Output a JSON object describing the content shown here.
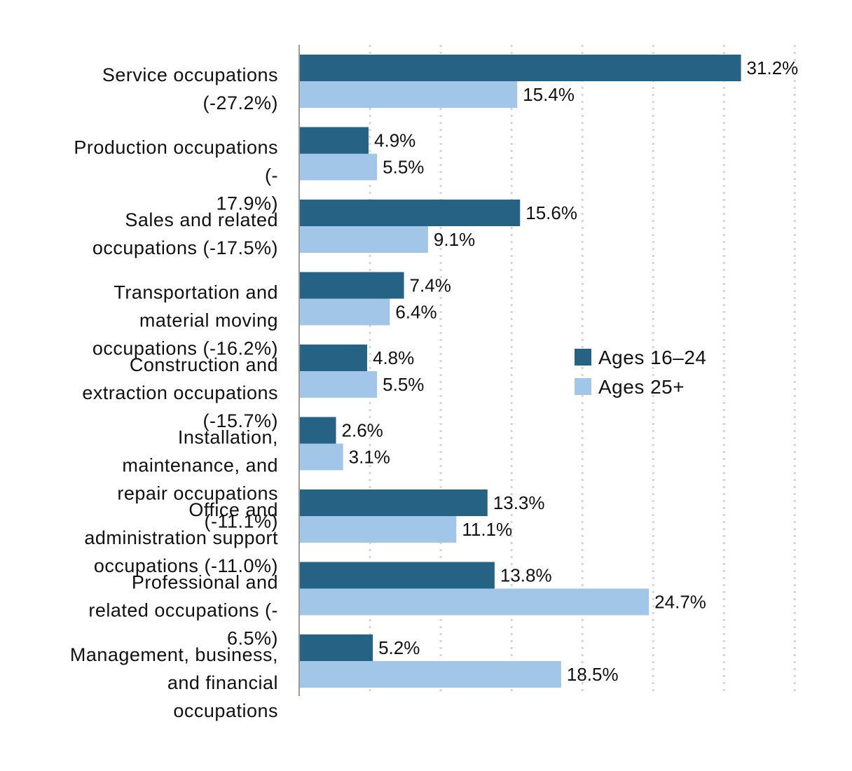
{
  "chart_data": {
    "type": "bar",
    "orientation": "horizontal",
    "categories": [
      "Service occupations (-27.2%)",
      "Production occupations (-17.9%)",
      "Sales and related occupations (-17.5%)",
      "Transportation and material moving occupations (-16.2%)",
      "Construction and extraction occupations (-15.7%)",
      "Installation, maintenance, and repair occupations (-11.1%)",
      "Office and administration support occupations (-11.0%)",
      "Professional and related occupations (-6.5%)",
      "Management, business, and financial occupations"
    ],
    "category_label_lines": [
      [
        "Service occupations",
        "(-27.2%)"
      ],
      [
        "Production occupations",
        "(-",
        "17.9%)"
      ],
      [
        "Sales and related",
        "occupations (-17.5%)"
      ],
      [
        "Transportation and",
        "material moving",
        "occupations (-16.2%)"
      ],
      [
        "Construction and",
        "extraction occupations",
        "(-15.7%)"
      ],
      [
        "Installation,",
        "maintenance, and",
        "repair occupations",
        "(-11.1%)"
      ],
      [
        "Office and",
        "administration support",
        "occupations (-11.0%)"
      ],
      [
        "Professional and",
        "related occupations (-",
        "6.5%)"
      ],
      [
        "Management, business,",
        "and financial",
        "occupations"
      ]
    ],
    "series": [
      {
        "name": "Ages 16–24",
        "color": "#266283",
        "values": [
          31.2,
          4.9,
          15.6,
          7.4,
          4.8,
          2.6,
          13.3,
          13.8,
          5.2
        ],
        "labels": [
          "31.2%",
          "4.9%",
          "15.6%",
          "7.4%",
          "4.8%",
          "2.6%",
          "13.3%",
          "13.8%",
          "5.2%"
        ]
      },
      {
        "name": "Ages 25+",
        "color": "#a1c6e7",
        "values": [
          15.4,
          5.5,
          9.1,
          6.4,
          5.5,
          3.1,
          11.1,
          24.7,
          18.5
        ],
        "labels": [
          "15.4%",
          "5.5%",
          "9.1%",
          "6.4%",
          "5.5%",
          "3.1%",
          "11.1%",
          "24.7%",
          "18.5%"
        ]
      }
    ],
    "xlim": [
      0,
      35
    ],
    "grid": true,
    "grid_style": "dotted",
    "legend_position": "center-right"
  }
}
